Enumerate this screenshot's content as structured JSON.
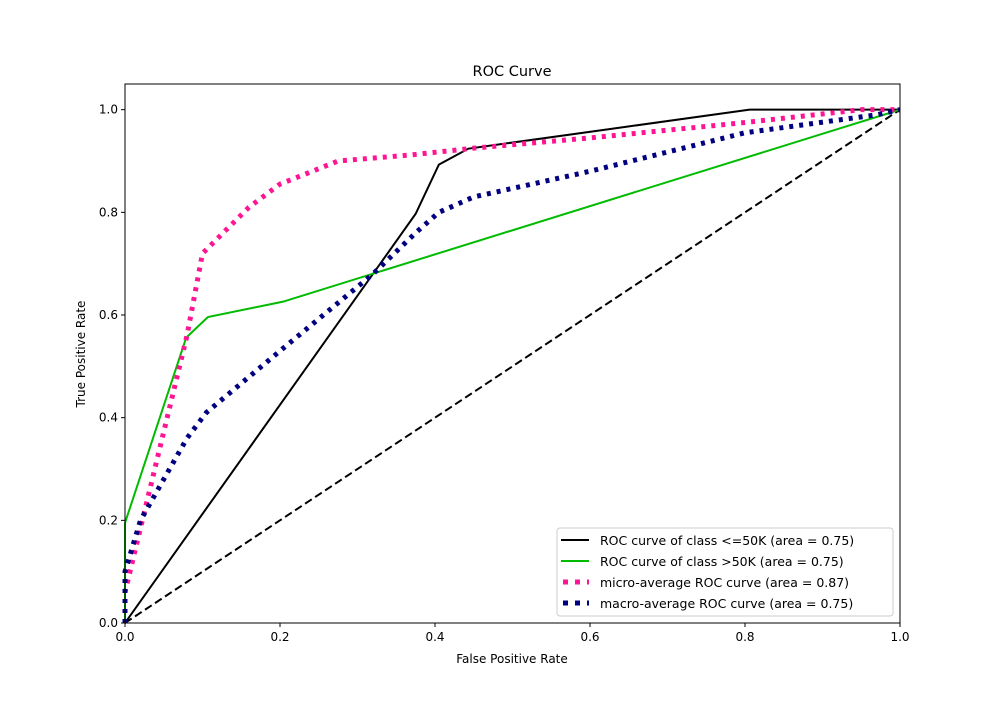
{
  "chart_data": {
    "type": "line",
    "title": "ROC Curve",
    "xlabel": "False Positive Rate",
    "ylabel": "True Positive Rate",
    "xlim": [
      0.0,
      1.0
    ],
    "ylim": [
      0.0,
      1.05
    ],
    "xticks": [
      "0.0",
      "0.2",
      "0.4",
      "0.6",
      "0.8",
      "1.0"
    ],
    "yticks": [
      "0.0",
      "0.2",
      "0.4",
      "0.6",
      "0.8",
      "1.0"
    ],
    "grid": false,
    "legend_position": "lower-right",
    "series": [
      {
        "name": "ROC curve of class  <=50K (area = 0.75)",
        "color": "#000000",
        "style": "solid",
        "x": [
          0,
          0.375,
          0.405,
          0.443,
          0.806,
          1.0
        ],
        "y": [
          0,
          0.797,
          0.893,
          0.924,
          1.0,
          1.0
        ]
      },
      {
        "name": "ROC curve of class  >50K (area = 0.75)",
        "color": "#00bb00",
        "style": "solid",
        "x": [
          0,
          0,
          0.079,
          0.107,
          0.204,
          1.0
        ],
        "y": [
          0,
          0.195,
          0.556,
          0.596,
          0.626,
          1.0
        ]
      },
      {
        "name": "micro-average ROC curve (area = 0.87)",
        "color": "#ff1493",
        "style": "dotted",
        "x": [
          0,
          0,
          0.08,
          0.1,
          0.12,
          0.16,
          0.2,
          0.275,
          0.37,
          0.45,
          0.6,
          0.8,
          0.95,
          1.0
        ],
        "y": [
          0,
          0.06,
          0.56,
          0.72,
          0.75,
          0.81,
          0.855,
          0.9,
          0.912,
          0.925,
          0.945,
          0.975,
          1.0,
          1.0
        ]
      },
      {
        "name": "macro-average ROC curve (area = 0.75)",
        "color": "#000080",
        "style": "dotted",
        "x": [
          0,
          0,
          0.02,
          0.08,
          0.105,
          0.2,
          0.32,
          0.375,
          0.405,
          0.45,
          0.6,
          0.8,
          0.97,
          1.0
        ],
        "y": [
          0,
          0.1,
          0.2,
          0.36,
          0.41,
          0.53,
          0.68,
          0.76,
          0.8,
          0.83,
          0.88,
          0.955,
          0.99,
          1.0
        ]
      },
      {
        "color": "#000000",
        "style": "dashed",
        "x": [
          0,
          1
        ],
        "y": [
          0,
          1
        ]
      }
    ]
  }
}
